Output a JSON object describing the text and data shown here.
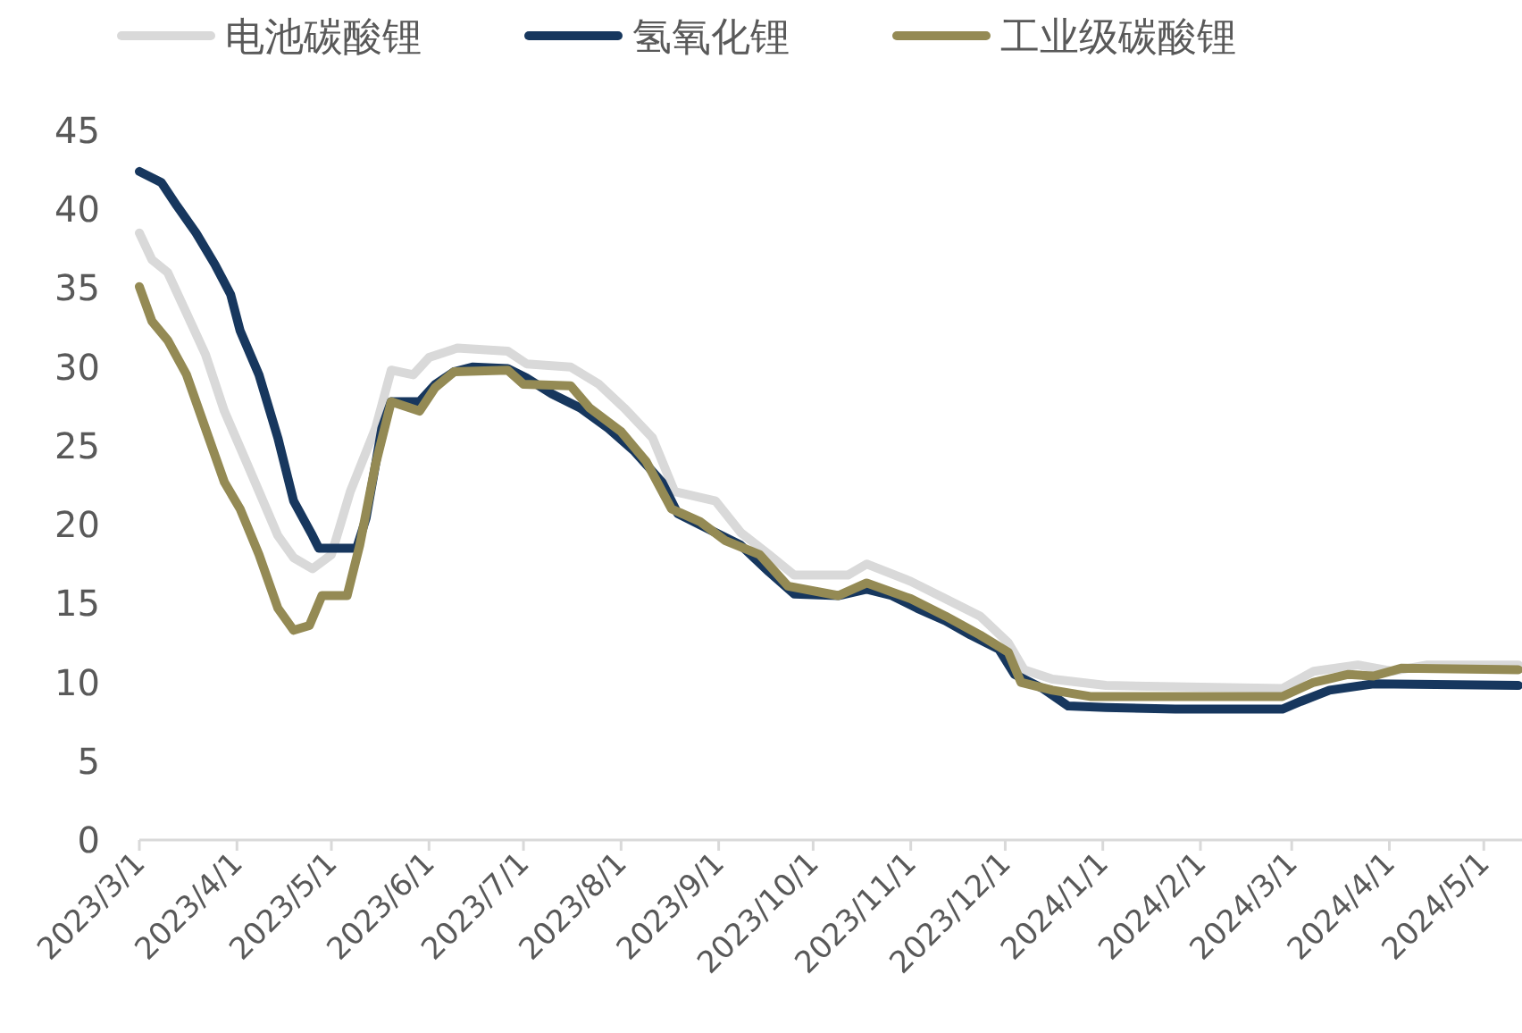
{
  "chart_data": {
    "type": "line",
    "legend": "top",
    "grid": false,
    "line_style": "solid",
    "marker": "none",
    "xlim": [
      "2023-03-01",
      "2024-05-12"
    ],
    "ylim": [
      0,
      45
    ],
    "yticks": [
      0,
      5,
      10,
      15,
      20,
      25,
      30,
      35,
      40,
      45
    ],
    "xticks": [
      {
        "value": "2023-03-01",
        "label": "2023/3/1"
      },
      {
        "value": "2023-04-01",
        "label": "2023/4/1"
      },
      {
        "value": "2023-05-01",
        "label": "2023/5/1"
      },
      {
        "value": "2023-06-01",
        "label": "2023/6/1"
      },
      {
        "value": "2023-07-01",
        "label": "2023/7/1"
      },
      {
        "value": "2023-08-01",
        "label": "2023/8/1"
      },
      {
        "value": "2023-09-01",
        "label": "2023/9/1"
      },
      {
        "value": "2023-10-01",
        "label": "2023/10/1"
      },
      {
        "value": "2023-11-01",
        "label": "2023/11/1"
      },
      {
        "value": "2023-12-01",
        "label": "2023/12/1"
      },
      {
        "value": "2024-01-01",
        "label": "2024/1/1"
      },
      {
        "value": "2024-02-01",
        "label": "2024/2/1"
      },
      {
        "value": "2024-03-01",
        "label": "2024/3/1"
      },
      {
        "value": "2024-04-01",
        "label": "2024/4/1"
      },
      {
        "value": "2024-05-01",
        "label": "2024/5/1"
      }
    ],
    "series": [
      {
        "name": "电池碳酸锂",
        "color": "#d9d9d9",
        "x": [
          "2023-03-01",
          "2023-03-05",
          "2023-03-10",
          "2023-03-16",
          "2023-03-22",
          "2023-03-28",
          "2023-04-02",
          "2023-04-08",
          "2023-04-14",
          "2023-04-19",
          "2023-04-25",
          "2023-05-01",
          "2023-05-07",
          "2023-05-15",
          "2023-05-20",
          "2023-05-27",
          "2023-06-01",
          "2023-06-10",
          "2023-06-26",
          "2023-07-02",
          "2023-07-16",
          "2023-07-25",
          "2023-08-02",
          "2023-08-11",
          "2023-08-18",
          "2023-08-31",
          "2023-09-08",
          "2023-09-17",
          "2023-09-25",
          "2023-10-12",
          "2023-10-18",
          "2023-11-01",
          "2023-11-12",
          "2023-11-23",
          "2023-12-02",
          "2023-12-07",
          "2023-12-16",
          "2024-01-02",
          "2024-02-27",
          "2024-03-08",
          "2024-03-22",
          "2024-04-02",
          "2024-04-13",
          "2024-05-12"
        ],
        "values": [
          38.5,
          36.8,
          36.0,
          33.4,
          30.8,
          27.2,
          24.9,
          22.1,
          19.3,
          17.9,
          17.2,
          18.1,
          22.1,
          26.1,
          29.8,
          29.5,
          30.6,
          31.2,
          31.0,
          30.2,
          30.0,
          28.9,
          27.4,
          25.5,
          22.1,
          21.5,
          19.5,
          18.1,
          16.8,
          16.8,
          17.5,
          16.4,
          15.3,
          14.2,
          12.5,
          10.8,
          10.2,
          9.8,
          9.6,
          10.7,
          11.1,
          10.7,
          11.1,
          11.1
        ]
      },
      {
        "name": "氢氧化锂",
        "color": "#17375e",
        "x": [
          "2023-03-01",
          "2023-03-08",
          "2023-03-13",
          "2023-03-19",
          "2023-03-25",
          "2023-03-30",
          "2023-04-02",
          "2023-04-08",
          "2023-04-14",
          "2023-04-19",
          "2023-04-25",
          "2023-04-27",
          "2023-05-09",
          "2023-05-12",
          "2023-05-15",
          "2023-05-17",
          "2023-05-20",
          "2023-05-29",
          "2023-06-03",
          "2023-06-09",
          "2023-06-15",
          "2023-06-26",
          "2023-07-02",
          "2023-07-10",
          "2023-07-19",
          "2023-07-28",
          "2023-08-05",
          "2023-08-14",
          "2023-08-19",
          "2023-08-31",
          "2023-09-08",
          "2023-09-17",
          "2023-09-25",
          "2023-10-09",
          "2023-10-18",
          "2023-10-26",
          "2023-11-03",
          "2023-11-12",
          "2023-11-20",
          "2023-11-29",
          "2023-12-04",
          "2023-12-13",
          "2023-12-21",
          "2024-01-02",
          "2024-01-24",
          "2024-02-27",
          "2024-03-04",
          "2024-03-13",
          "2024-03-27",
          "2024-05-12"
        ],
        "values": [
          42.4,
          41.7,
          40.2,
          38.5,
          36.5,
          34.6,
          32.3,
          29.5,
          25.5,
          21.5,
          19.3,
          18.5,
          18.5,
          20.4,
          23.8,
          26.1,
          27.8,
          27.8,
          28.9,
          29.7,
          30.0,
          29.9,
          29.3,
          28.3,
          27.4,
          26.1,
          24.7,
          22.7,
          20.7,
          19.5,
          18.7,
          17.0,
          15.6,
          15.5,
          15.9,
          15.5,
          14.7,
          13.9,
          13.0,
          12.1,
          10.5,
          9.6,
          8.5,
          8.4,
          8.3,
          8.3,
          8.8,
          9.5,
          9.9,
          9.8
        ]
      },
      {
        "name": "工业级碳酸锂",
        "color": "#948a54",
        "x": [
          "2023-03-01",
          "2023-03-05",
          "2023-03-10",
          "2023-03-16",
          "2023-03-22",
          "2023-03-28",
          "2023-04-02",
          "2023-04-08",
          "2023-04-14",
          "2023-04-19",
          "2023-04-24",
          "2023-04-28",
          "2023-05-06",
          "2023-05-10",
          "2023-05-15",
          "2023-05-20",
          "2023-05-29",
          "2023-06-03",
          "2023-06-09",
          "2023-06-26",
          "2023-07-01",
          "2023-07-16",
          "2023-07-22",
          "2023-08-01",
          "2023-08-09",
          "2023-08-17",
          "2023-08-26",
          "2023-09-03",
          "2023-09-14",
          "2023-09-23",
          "2023-10-09",
          "2023-10-18",
          "2023-11-01",
          "2023-11-12",
          "2023-11-23",
          "2023-12-02",
          "2023-12-06",
          "2023-12-16",
          "2023-12-28",
          "2024-02-27",
          "2024-03-08",
          "2024-03-19",
          "2024-03-27",
          "2024-04-05",
          "2024-05-12"
        ],
        "values": [
          35.1,
          32.9,
          31.7,
          29.5,
          26.1,
          22.7,
          21.0,
          18.1,
          14.7,
          13.3,
          13.6,
          15.5,
          15.5,
          18.7,
          23.8,
          27.8,
          27.2,
          28.7,
          29.7,
          29.8,
          28.9,
          28.8,
          27.4,
          25.9,
          24.0,
          21.0,
          20.2,
          19.0,
          18.1,
          16.1,
          15.5,
          16.3,
          15.3,
          14.2,
          13.0,
          11.9,
          10.0,
          9.5,
          9.1,
          9.1,
          10.0,
          10.5,
          10.4,
          10.9,
          10.8
        ]
      }
    ]
  }
}
